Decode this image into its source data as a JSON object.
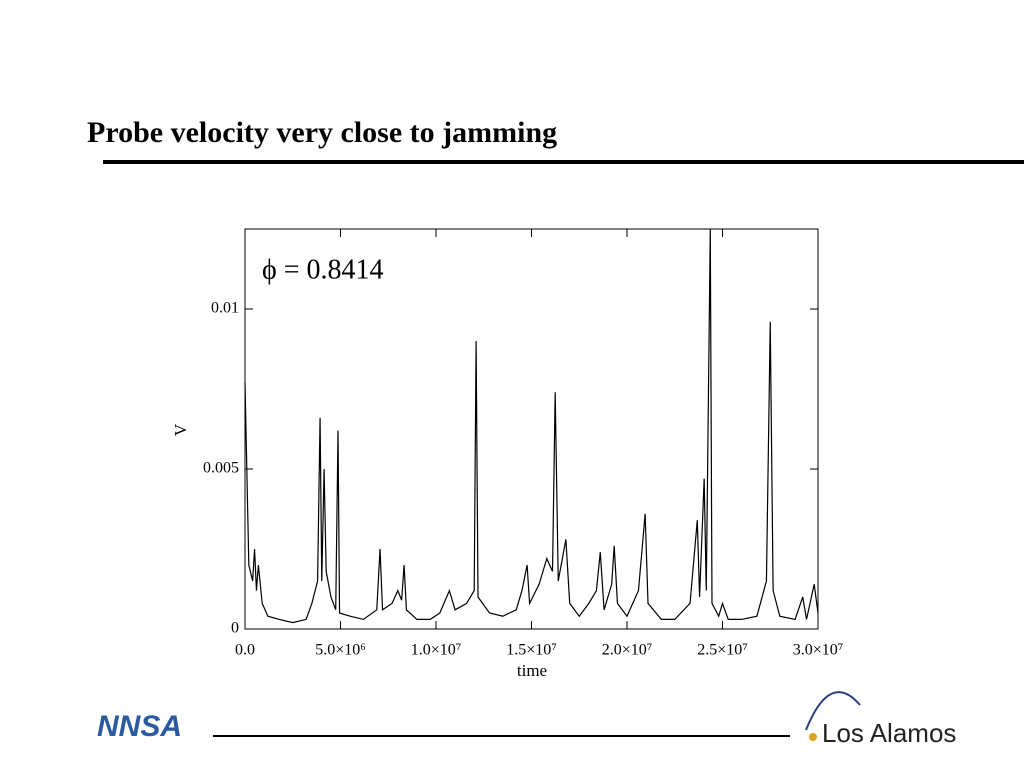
{
  "slide": {
    "title": "Probe velocity very close to jamming",
    "logos": [
      "NNSA",
      "Los Alamos"
    ]
  },
  "chart_data": {
    "type": "line",
    "annotation": "ϕ = 0.8414",
    "x_label": "time",
    "y_label": "V",
    "xlim": [
      0,
      30000000
    ],
    "ylim": [
      0,
      0.0125
    ],
    "xticks": [
      {
        "value": 0,
        "label": "0.0"
      },
      {
        "value": 5000000,
        "label": "5.0×10⁶"
      },
      {
        "value": 10000000,
        "label": "1.0×10⁷"
      },
      {
        "value": 15000000,
        "label": "1.5×10⁷"
      },
      {
        "value": 20000000,
        "label": "2.0×10⁷"
      },
      {
        "value": 25000000,
        "label": "2.5×10⁷"
      },
      {
        "value": 30000000,
        "label": "3.0×10⁷"
      }
    ],
    "yticks": [
      0,
      0.005,
      0.01
    ],
    "x": [
      0,
      200000,
      400000,
      500000,
      600000,
      700000,
      900000,
      1200000,
      1800000,
      2500000,
      3200000,
      3500000,
      3800000,
      3930000,
      4020000,
      4140000,
      4250000,
      4500000,
      4750000,
      4870000,
      4950000,
      5500000,
      6200000,
      6900000,
      7070000,
      7200000,
      7700000,
      8000000,
      8200000,
      8330000,
      8450000,
      9000000,
      9700000,
      10200000,
      10700000,
      11000000,
      11600000,
      12000000,
      12100000,
      12200000,
      12800000,
      13500000,
      14200000,
      14500000,
      14770000,
      14900000,
      15400000,
      15800000,
      16100000,
      16240000,
      16400000,
      16800000,
      17000000,
      17500000,
      18000000,
      18400000,
      18600000,
      18800000,
      19200000,
      19330000,
      19500000,
      20000000,
      20600000,
      20950000,
      21100000,
      21800000,
      22500000,
      23300000,
      23680000,
      23800000,
      24040000,
      24150000,
      24360000,
      24450000,
      24800000,
      25000000,
      25300000,
      26000000,
      26800000,
      27300000,
      27500000,
      27650000,
      28000000,
      28800000,
      29200000,
      29400000,
      29800000,
      30000000
    ],
    "series": [
      {
        "name": "V",
        "color": "#000000",
        "values": [
          0.0077,
          0.002,
          0.0015,
          0.0025,
          0.0012,
          0.002,
          0.0008,
          0.0004,
          0.0003,
          0.0002,
          0.0003,
          0.0008,
          0.0015,
          0.0066,
          0.0015,
          0.005,
          0.0018,
          0.001,
          0.0006,
          0.0062,
          0.0005,
          0.0004,
          0.0003,
          0.0006,
          0.0025,
          0.0006,
          0.0008,
          0.0012,
          0.0009,
          0.002,
          0.0006,
          0.0003,
          0.0003,
          0.0005,
          0.0012,
          0.0006,
          0.0008,
          0.0012,
          0.009,
          0.001,
          0.0005,
          0.0004,
          0.0006,
          0.0012,
          0.002,
          0.0008,
          0.0014,
          0.0022,
          0.0018,
          0.0074,
          0.0015,
          0.0028,
          0.0008,
          0.0004,
          0.0008,
          0.0012,
          0.0024,
          0.0006,
          0.0014,
          0.0026,
          0.0008,
          0.0004,
          0.0012,
          0.0036,
          0.0008,
          0.0003,
          0.0003,
          0.0008,
          0.0034,
          0.001,
          0.0047,
          0.0012,
          0.0125,
          0.0008,
          0.0004,
          0.0008,
          0.0003,
          0.0003,
          0.0004,
          0.0015,
          0.0096,
          0.0012,
          0.0004,
          0.0003,
          0.001,
          0.0003,
          0.0014,
          0.0005
        ]
      }
    ]
  }
}
